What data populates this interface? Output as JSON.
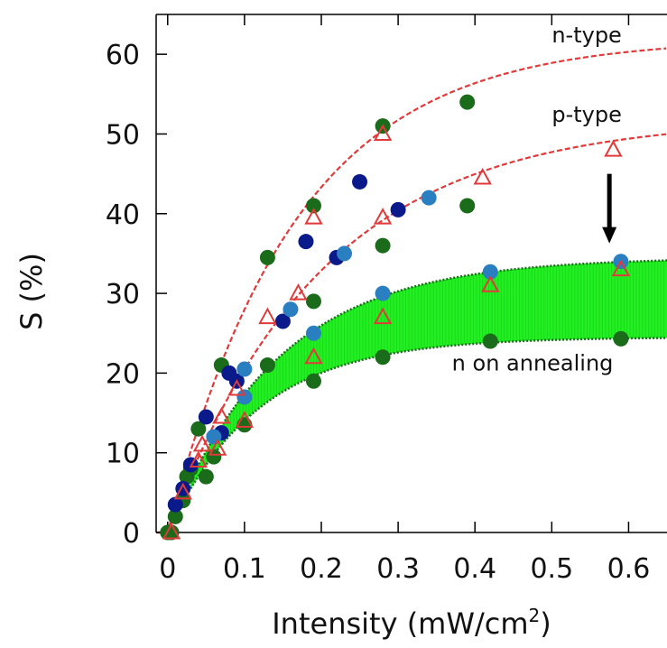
{
  "chart_data": {
    "type": "scatter",
    "xlabel": "Intensity (mW/cm",
    "xlabel_sup": "2",
    "xlabel_close": ")",
    "ylabel": "S (%)",
    "xlim": [
      -0.015,
      0.65
    ],
    "ylim": [
      0,
      65
    ],
    "xticks": [
      0,
      0.1,
      0.2,
      0.3,
      0.4,
      0.5,
      0.6
    ],
    "xtick_labels": [
      "0",
      "0.1",
      "0.2",
      "0.3",
      "0.4",
      "0.5",
      "0.6"
    ],
    "yticks": [
      0,
      10,
      20,
      30,
      40,
      50,
      60
    ],
    "ytick_labels": [
      "0",
      "10",
      "20",
      "30",
      "40",
      "50",
      "60"
    ],
    "grid": false,
    "annotations": [
      {
        "text": "n-type",
        "x": 0.5,
        "y": 61.5
      },
      {
        "text": "p-type",
        "x": 0.5,
        "y": 51.5
      },
      {
        "text": "n on annealing",
        "x": 0.37,
        "y": 20.3
      }
    ],
    "arrow": {
      "x": 0.575,
      "y_from": 45,
      "y_to": 36.5
    },
    "curves": [
      {
        "name": "n-type",
        "amplitude": 62,
        "rate": 6.0,
        "color": "#e03a3a"
      },
      {
        "name": "p-type",
        "amplitude": 52,
        "rate": 5.0,
        "color": "#e03a3a"
      }
    ],
    "band": {
      "upper_amplitude": 34.5,
      "upper_rate": 7.0,
      "lower_amplitude": 24.5,
      "lower_rate": 8.5,
      "x_start": 0.03,
      "color": "#22f022",
      "edge_color": "#1f6b1f"
    },
    "series": [
      {
        "marker": "circle",
        "color": "#1a6b1a",
        "points": [
          [
            0,
            0
          ],
          [
            0.005,
            0
          ],
          [
            0.01,
            2
          ],
          [
            0.02,
            4
          ],
          [
            0.025,
            7
          ],
          [
            0.03,
            8
          ],
          [
            0.04,
            13
          ],
          [
            0.05,
            7
          ],
          [
            0.06,
            9.5
          ],
          [
            0.07,
            21
          ],
          [
            0.1,
            13.5
          ],
          [
            0.13,
            34.5
          ],
          [
            0.13,
            21
          ],
          [
            0.19,
            41
          ],
          [
            0.19,
            29
          ],
          [
            0.19,
            19
          ],
          [
            0.28,
            51
          ],
          [
            0.28,
            36
          ],
          [
            0.28,
            22
          ],
          [
            0.39,
            54
          ],
          [
            0.39,
            41
          ],
          [
            0.42,
            24
          ],
          [
            0.59,
            24.3
          ]
        ]
      },
      {
        "marker": "circle",
        "color": "#0a1a8a",
        "points": [
          [
            0.01,
            3.5
          ],
          [
            0.02,
            5.5
          ],
          [
            0.03,
            8.5
          ],
          [
            0.05,
            14.5
          ],
          [
            0.07,
            12.5
          ],
          [
            0.08,
            20
          ],
          [
            0.09,
            19
          ],
          [
            0.15,
            26.5
          ],
          [
            0.18,
            36.5
          ],
          [
            0.22,
            34.5
          ],
          [
            0.25,
            44
          ],
          [
            0.3,
            40.5
          ]
        ]
      },
      {
        "marker": "circle",
        "color": "#2a7fc0",
        "points": [
          [
            0.06,
            12
          ],
          [
            0.1,
            17
          ],
          [
            0.1,
            20.5
          ],
          [
            0.16,
            28
          ],
          [
            0.19,
            25
          ],
          [
            0.23,
            35
          ],
          [
            0.28,
            30
          ],
          [
            0.34,
            42
          ],
          [
            0.42,
            32.7
          ],
          [
            0.59,
            34
          ]
        ]
      },
      {
        "marker": "triangle",
        "color": "#e03a3a",
        "points": [
          [
            0.005,
            0
          ],
          [
            0.02,
            5
          ],
          [
            0.04,
            9
          ],
          [
            0.045,
            11
          ],
          [
            0.065,
            10.5
          ],
          [
            0.07,
            14.5
          ],
          [
            0.09,
            18
          ],
          [
            0.1,
            14
          ],
          [
            0.13,
            27
          ],
          [
            0.17,
            30
          ],
          [
            0.19,
            22
          ],
          [
            0.19,
            39.5
          ],
          [
            0.28,
            50
          ],
          [
            0.28,
            39.5
          ],
          [
            0.28,
            27
          ],
          [
            0.41,
            44.5
          ],
          [
            0.42,
            31
          ],
          [
            0.58,
            48
          ],
          [
            0.59,
            33
          ]
        ]
      }
    ]
  }
}
